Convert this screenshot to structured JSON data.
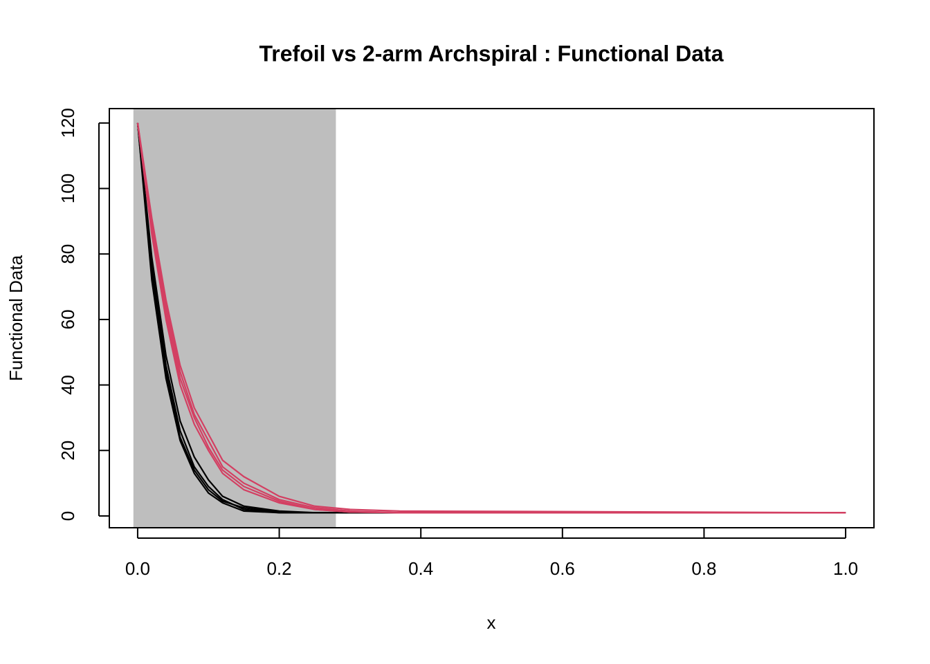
{
  "chart_data": {
    "type": "line",
    "title": "Trefoil vs 2-arm Archspiral : Functional Data",
    "x_label": "x",
    "y_label": "Functional Data",
    "xlim": [
      -0.04,
      1.04
    ],
    "ylim": [
      -3.6,
      124.4
    ],
    "xticks": [
      {
        "value": 0,
        "label": "0.0"
      },
      0.2,
      0.4,
      0.6,
      0.8,
      {
        "value": 1,
        "label": "1.0"
      }
    ],
    "yticks": [
      0,
      20,
      40,
      60,
      80,
      100,
      120
    ],
    "shaded_region": {
      "x": [
        -0.006,
        0.28
      ],
      "color": "#bebebe"
    },
    "x": [
      0,
      0.02,
      0.04,
      0.06,
      0.08,
      0.1,
      0.12,
      0.15,
      0.2,
      0.25,
      0.3,
      0.37,
      1.0
    ],
    "series": [
      {
        "color": "#000000",
        "values": [
          120,
          72,
          42,
          23,
          13,
          7,
          4,
          1.5,
          1,
          1,
          1,
          1,
          1
        ]
      },
      {
        "color": "#000000",
        "values": [
          120,
          76,
          46,
          26,
          15,
          9,
          5,
          2,
          1,
          1,
          1,
          1,
          1
        ]
      },
      {
        "color": "#000000",
        "values": [
          120,
          79,
          49,
          29,
          18,
          11,
          6,
          3,
          1.5,
          1,
          1,
          1,
          1
        ]
      },
      {
        "color": "#000000",
        "values": [
          120,
          74,
          44,
          24,
          14,
          8,
          4.5,
          2.5,
          1.2,
          1,
          1,
          1,
          1
        ]
      },
      {
        "color": "#D33F62",
        "values": [
          120,
          86,
          60,
          40,
          28,
          20,
          13,
          8,
          4,
          2,
          1.2,
          1,
          1
        ]
      },
      {
        "color": "#D33F62",
        "values": [
          120,
          89,
          64,
          44,
          31,
          23,
          15,
          10,
          5,
          2.5,
          1.5,
          1,
          1
        ]
      },
      {
        "color": "#D33F62",
        "values": [
          120,
          91,
          66,
          46,
          33,
          25,
          17,
          12,
          6,
          3,
          2,
          1.5,
          1
        ]
      },
      {
        "color": "#D33F62",
        "values": [
          120,
          87,
          62,
          42,
          30,
          21,
          14,
          9,
          4.5,
          2,
          1.2,
          1,
          1
        ]
      }
    ]
  }
}
